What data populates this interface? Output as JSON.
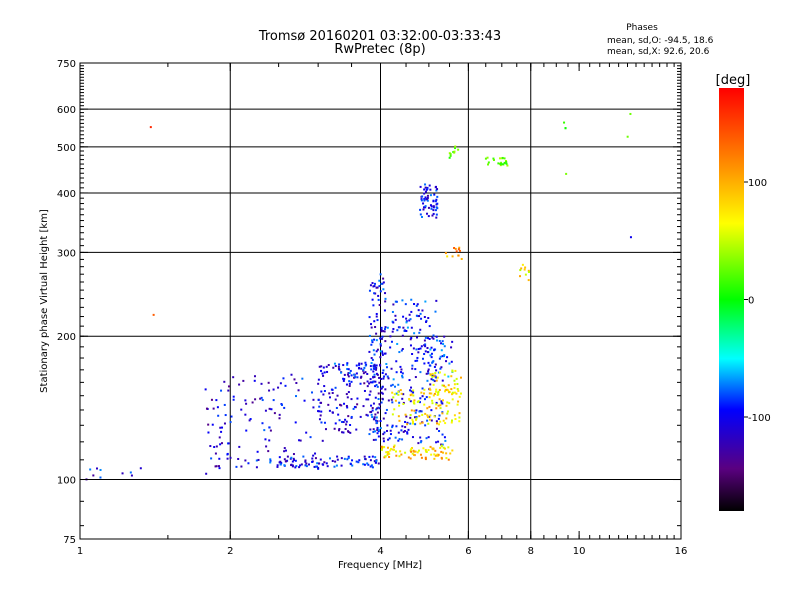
{
  "chart_data": {
    "type": "scatter",
    "title": "Tromsø 20160201 03:32:00-03:33:43",
    "subtitle": "RwPretec (8p)",
    "xlabel": "Frequency [MHz]",
    "ylabel": "Stationary phase Virtual Height [km]",
    "x_scale": "log",
    "y_scale": "log",
    "xlim": [
      1,
      16
    ],
    "ylim": [
      75,
      750
    ],
    "x_ticks": [
      1,
      2,
      4,
      6,
      8,
      10,
      16
    ],
    "x_tick_labels": [
      "1",
      "2",
      "4",
      "6",
      "8",
      "10",
      "16"
    ],
    "y_ticks": [
      75,
      100,
      200,
      300,
      400,
      500,
      600,
      750
    ],
    "y_tick_labels": [
      "75",
      "100",
      "200",
      "300",
      "400",
      "500",
      "600",
      "750"
    ],
    "x_gridlines": [
      2,
      4,
      6,
      8
    ],
    "y_gridlines": [
      100,
      200,
      300,
      400,
      500,
      600
    ],
    "grid": true,
    "phases_box": {
      "title": "Phases",
      "line_o": "mean, sd,O: -94.5, 18.6",
      "line_x": "mean, sd,X:  92.6, 20.6"
    },
    "colorbar": {
      "label": "[deg]",
      "range": [
        -180,
        180
      ],
      "ticks": [
        100,
        0,
        -100
      ],
      "tick_labels": [
        "100",
        "0",
        "-100"
      ]
    },
    "series": [
      {
        "clusters": [
          {
            "x0": 1.02,
            "x1": 1.35,
            "y0": 100,
            "y1": 106,
            "n": 10,
            "phase": -100
          },
          {
            "x0": 1.78,
            "x1": 2.0,
            "y0": 102,
            "y1": 162,
            "n": 40,
            "phase": -110
          },
          {
            "x0": 2.0,
            "x1": 3.1,
            "y0": 104,
            "y1": 168,
            "n": 95,
            "phase": -105
          },
          {
            "x0": 2.4,
            "x1": 4.0,
            "y0": 106,
            "y1": 112,
            "n": 90,
            "phase": -100
          },
          {
            "x0": 3.0,
            "x1": 4.0,
            "y0": 125,
            "y1": 175,
            "n": 130,
            "phase": -110
          },
          {
            "x0": 3.2,
            "x1": 4.0,
            "y0": 160,
            "y1": 176,
            "n": 45,
            "phase": -95
          },
          {
            "x0": 3.8,
            "x1": 4.1,
            "y0": 120,
            "y1": 270,
            "n": 120,
            "phase": -100
          },
          {
            "x0": 4.0,
            "x1": 5.2,
            "y0": 150,
            "y1": 240,
            "n": 150,
            "phase": -95
          },
          {
            "x0": 4.1,
            "x1": 5.4,
            "y0": 118,
            "y1": 150,
            "n": 80,
            "phase": -100
          },
          {
            "x0": 4.8,
            "x1": 5.2,
            "y0": 355,
            "y1": 420,
            "n": 60,
            "phase": -100
          },
          {
            "x0": 4.9,
            "x1": 5.6,
            "y0": 160,
            "y1": 200,
            "n": 45,
            "phase": -90
          },
          {
            "x0": 4.0,
            "x1": 5.6,
            "y0": 110,
            "y1": 118,
            "n": 80,
            "phase": 110
          },
          {
            "x0": 4.2,
            "x1": 5.8,
            "y0": 130,
            "y1": 155,
            "n": 100,
            "phase": 105
          },
          {
            "x0": 5.0,
            "x1": 5.8,
            "y0": 150,
            "y1": 170,
            "n": 40,
            "phase": 100
          },
          {
            "x0": 5.4,
            "x1": 5.85,
            "y0": 290,
            "y1": 310,
            "n": 12,
            "phase": 130
          },
          {
            "x0": 5.45,
            "x1": 5.75,
            "y0": 470,
            "y1": 505,
            "n": 10,
            "phase": 40
          },
          {
            "x0": 6.5,
            "x1": 7.2,
            "y0": 455,
            "y1": 475,
            "n": 22,
            "phase": 40
          },
          {
            "x0": 7.6,
            "x1": 8.0,
            "y0": 262,
            "y1": 290,
            "n": 10,
            "phase": 100
          },
          {
            "x0": 1.37,
            "x1": 1.4,
            "y0": 548,
            "y1": 552,
            "n": 1,
            "phase": 160
          },
          {
            "x0": 1.38,
            "x1": 1.41,
            "y0": 218,
            "y1": 222,
            "n": 1,
            "phase": 160
          },
          {
            "x0": 9.3,
            "x1": 9.5,
            "y0": 530,
            "y1": 565,
            "n": 3,
            "phase": 20
          },
          {
            "x0": 12.5,
            "x1": 12.8,
            "y0": 525,
            "y1": 590,
            "n": 2,
            "phase": 20
          },
          {
            "x0": 12.6,
            "x1": 12.8,
            "y0": 322,
            "y1": 326,
            "n": 1,
            "phase": -100
          },
          {
            "x0": 9.3,
            "x1": 9.5,
            "y0": 436,
            "y1": 440,
            "n": 1,
            "phase": 20
          }
        ]
      }
    ]
  }
}
